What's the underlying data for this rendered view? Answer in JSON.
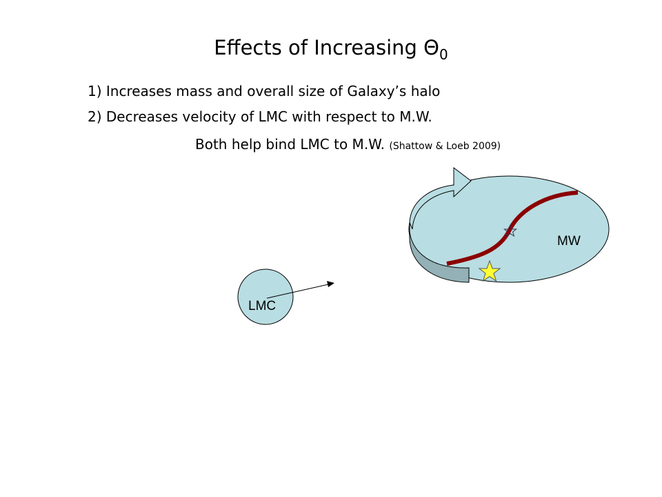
{
  "slide": {
    "title": "Effects of Increasing ",
    "title_symbol": "Θ",
    "title_subscript": "0",
    "points": [
      "1) Increases mass and overall size of Galaxy’s halo",
      "2) Decreases velocity of LMC with respect to M.W."
    ],
    "conclusion": "Both help bind LMC to M.W.",
    "citation": "(Shattow & Loeb 2009)"
  },
  "diagram": {
    "mw_label": "MW",
    "lmc_label": "LMC",
    "colors": {
      "galaxy_fill": "#b8dde2",
      "arrow_side": "#93b1b6",
      "orbit_curve": "#8b0000",
      "sun_star": "#ffff33"
    }
  }
}
